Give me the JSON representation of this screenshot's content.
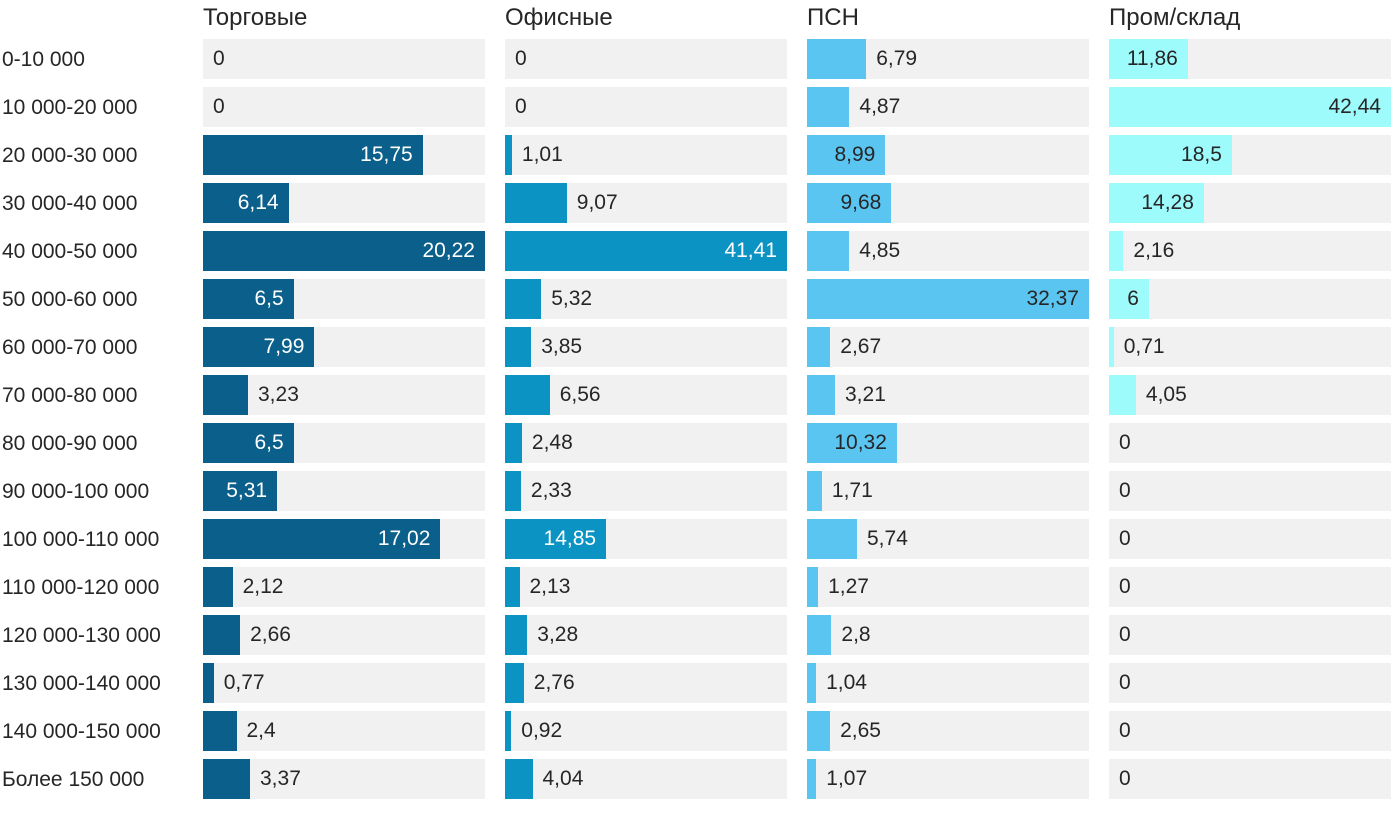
{
  "chart_data": {
    "type": "bar",
    "orientation": "horizontal",
    "layout": "small-multiples-4-columns",
    "scaling": "each-column-scaled-to-its-own-max",
    "grid": "off",
    "legend": "none",
    "axes": "none",
    "background": "#ffffff",
    "track_color": "#f1f1f1",
    "text_color": "#262626",
    "value_decimal_separator": ",",
    "categories": [
      "0-10 000",
      "10 000-20 000",
      "20 000-30 000",
      "30 000-40 000",
      "40 000-50 000",
      "50 000-60 000",
      "60 000-70 000",
      "70 000-80 000",
      "80 000-90 000",
      "90 000-100 000",
      "100 000-110 000",
      "110 000-120 000",
      "120 000-130 000",
      "130 000-140 000",
      "140 000-150 000",
      "Более 150 000"
    ],
    "series": [
      {
        "name": "Торговые",
        "color": "#0a5f8b",
        "inside_label_color": "#ffffff",
        "values": [
          0,
          0,
          15.75,
          6.14,
          20.22,
          6.5,
          7.99,
          3.23,
          6.5,
          5.31,
          17.02,
          2.12,
          2.66,
          0.77,
          2.4,
          3.37
        ]
      },
      {
        "name": "Офисные",
        "color": "#0a93c3",
        "inside_label_color": "#ffffff",
        "values": [
          0,
          0,
          1.01,
          9.07,
          41.41,
          5.32,
          3.85,
          6.56,
          2.48,
          2.33,
          14.85,
          2.13,
          3.28,
          2.76,
          0.92,
          4.04
        ]
      },
      {
        "name": "ПСН",
        "color": "#5bc5f1",
        "inside_label_color": "#262626",
        "values": [
          6.79,
          4.87,
          8.99,
          9.68,
          4.85,
          32.37,
          2.67,
          3.21,
          10.32,
          1.71,
          5.74,
          1.27,
          2.8,
          1.04,
          2.65,
          1.07
        ]
      },
      {
        "name": "Пром/склад",
        "color": "#9efbfc",
        "inside_label_color": "#262626",
        "values": [
          11.86,
          42.44,
          18.5,
          14.28,
          2.16,
          6,
          0.71,
          4.05,
          0,
          0,
          0,
          0,
          0,
          0,
          0,
          0
        ]
      }
    ]
  }
}
